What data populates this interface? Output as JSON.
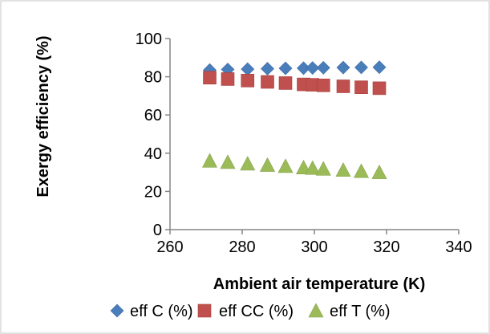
{
  "chart_data": {
    "type": "scatter",
    "title": "",
    "xlabel": "Ambient air temperature (K)",
    "ylabel": "Exergy efficiency  (%)",
    "xlim": [
      260,
      340
    ],
    "ylim": [
      0,
      100
    ],
    "xticks": [
      "260",
      "280",
      "300",
      "320",
      "340"
    ],
    "yticks": [
      "0",
      "20",
      "40",
      "60",
      "80",
      "100"
    ],
    "grid": "none",
    "legend_position": "bottom",
    "x": [
      271,
      276,
      281.5,
      287,
      292,
      297,
      299.5,
      302.5,
      308,
      313,
      318
    ],
    "series": [
      {
        "name": "eff C (%)",
        "marker": "diamond",
        "color": "#4a7ebb",
        "values": [
          83.5,
          83.8,
          84.0,
          84.2,
          84.4,
          84.5,
          84.6,
          84.7,
          84.8,
          84.9,
          85.0
        ]
      },
      {
        "name": "eff CC (%)",
        "marker": "square",
        "color": "#c0504d",
        "values": [
          79.5,
          78.8,
          78.0,
          77.3,
          76.7,
          76.0,
          75.8,
          75.5,
          75.0,
          74.5,
          74.0
        ]
      },
      {
        "name": "eff T (%)",
        "marker": "triangle",
        "color": "#9bbb59",
        "values": [
          36.0,
          35.3,
          34.5,
          33.8,
          33.2,
          32.5,
          32.2,
          31.8,
          31.2,
          30.6,
          30.0
        ]
      }
    ]
  }
}
